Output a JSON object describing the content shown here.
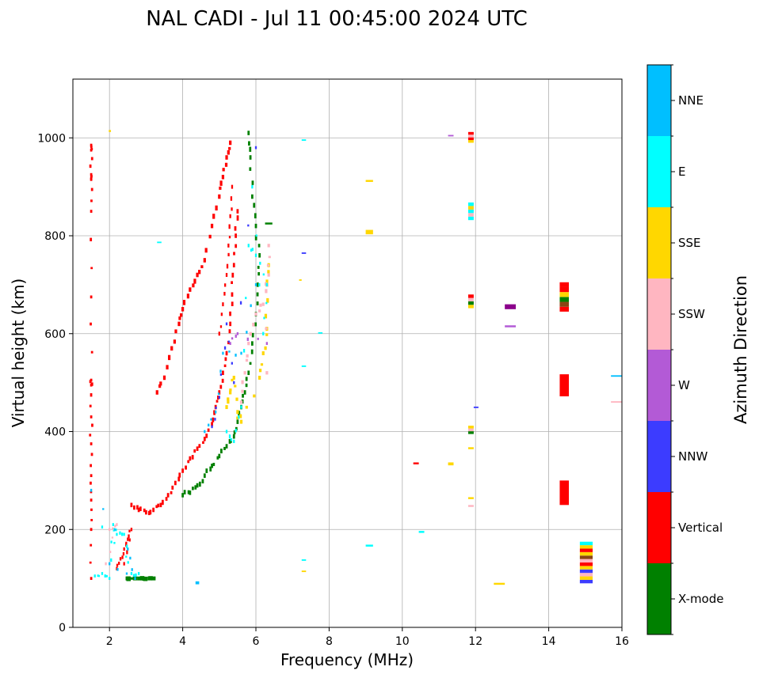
{
  "chart_data": {
    "type": "scatter",
    "title": "NAL CADI - Jul 11 00:45:00 2024 UTC",
    "xlabel": "Frequency (MHz)",
    "ylabel": "Virtual height (km)",
    "xlim": [
      1,
      16
    ],
    "ylim": [
      0,
      1120
    ],
    "xticks": [
      "2",
      "4",
      "6",
      "8",
      "10",
      "12",
      "14",
      "16"
    ],
    "yticks": [
      "0",
      "200",
      "400",
      "600",
      "800",
      "1000"
    ],
    "grid": true,
    "colorbar": {
      "title": "Azimuth Direction",
      "categories": [
        {
          "name": "X-mode",
          "color": "#008000"
        },
        {
          "name": "Vertical",
          "color": "#ff0000"
        },
        {
          "name": "NNW",
          "color": "#3c3cff"
        },
        {
          "name": "W",
          "color": "#b35ad6"
        },
        {
          "name": "SSW",
          "color": "#ffb6c1"
        },
        {
          "name": "SSE",
          "color": "#ffd700"
        },
        {
          "name": "E",
          "color": "#00ffff"
        },
        {
          "name": "NNE",
          "color": "#00bfff"
        }
      ]
    },
    "extra_colors": {
      "brown": "#8b4513",
      "purple": "#8b008b"
    },
    "traces": [
      {
        "series": "Vertical",
        "points": [
          [
            2.6,
            250
          ],
          [
            2.8,
            240
          ],
          [
            3.0,
            235
          ],
          [
            3.2,
            240
          ],
          [
            3.4,
            250
          ],
          [
            3.6,
            270
          ],
          [
            3.8,
            295
          ],
          [
            4.0,
            320
          ],
          [
            4.2,
            345
          ],
          [
            4.4,
            365
          ],
          [
            4.6,
            385
          ],
          [
            4.8,
            415
          ],
          [
            4.9,
            450
          ],
          [
            5.0,
            480
          ],
          [
            5.1,
            520
          ],
          [
            5.2,
            560
          ],
          [
            5.3,
            620
          ],
          [
            5.35,
            680
          ],
          [
            5.4,
            740
          ],
          [
            5.45,
            800
          ],
          [
            5.5,
            850
          ]
        ],
        "dx": 0.06,
        "dy": 9,
        "jitter": 10
      },
      {
        "series": "Vertical",
        "points": [
          [
            3.3,
            480
          ],
          [
            3.5,
            510
          ],
          [
            3.7,
            570
          ],
          [
            3.9,
            620
          ],
          [
            4.0,
            650
          ],
          [
            4.2,
            690
          ],
          [
            4.4,
            720
          ],
          [
            4.6,
            750
          ],
          [
            4.8,
            820
          ],
          [
            5.0,
            880
          ],
          [
            5.1,
            920
          ],
          [
            5.2,
            960
          ],
          [
            5.3,
            990
          ]
        ],
        "dx": 0.07,
        "dy": 9,
        "jitter": 8
      },
      {
        "series": "Vertical",
        "points": [
          [
            5.0,
            600
          ],
          [
            5.1,
            660
          ],
          [
            5.2,
            720
          ],
          [
            5.25,
            780
          ],
          [
            5.3,
            840
          ],
          [
            5.35,
            900
          ]
        ],
        "dx": 0.05,
        "dy": 8,
        "jitter": 12
      },
      {
        "series": "X-mode",
        "points": [
          [
            4.0,
            270
          ],
          [
            4.2,
            275
          ],
          [
            4.4,
            290
          ],
          [
            4.6,
            310
          ],
          [
            4.8,
            330
          ],
          [
            5.0,
            350
          ],
          [
            5.2,
            370
          ],
          [
            5.4,
            390
          ],
          [
            5.5,
            420
          ],
          [
            5.6,
            450
          ],
          [
            5.7,
            480
          ],
          [
            5.8,
            520
          ],
          [
            5.9,
            580
          ],
          [
            6.0,
            640
          ],
          [
            6.05,
            700
          ],
          [
            6.1,
            760
          ],
          [
            6.0,
            820
          ],
          [
            5.9,
            880
          ],
          [
            5.85,
            960
          ],
          [
            5.8,
            1010
          ]
        ],
        "dx": 0.06,
        "dy": 9,
        "jitter": 10
      },
      {
        "series": "X-mode",
        "points": [
          [
            2.5,
            100
          ],
          [
            2.7,
            100
          ],
          [
            2.9,
            100
          ],
          [
            3.1,
            100
          ],
          [
            3.2,
            100
          ]
        ],
        "dx": 0.12,
        "dy": 8,
        "jitter": 2
      },
      {
        "series": "SSE",
        "points": [
          [
            5.2,
            450
          ],
          [
            5.3,
            480
          ],
          [
            5.4,
            510
          ],
          [
            5.5,
            440
          ],
          [
            5.6,
            420
          ],
          [
            6.1,
            510
          ],
          [
            6.2,
            560
          ],
          [
            6.3,
            610
          ],
          [
            6.3,
            700
          ],
          [
            6.35,
            740
          ]
        ],
        "dx": 0.07,
        "dy": 8,
        "jitter": 15
      },
      {
        "series": "SSW",
        "points": [
          [
            5.6,
            460
          ],
          [
            5.7,
            520
          ],
          [
            5.8,
            580
          ],
          [
            6.0,
            640
          ],
          [
            6.2,
            660
          ],
          [
            6.35,
            720
          ],
          [
            6.35,
            780
          ],
          [
            6.3,
            520
          ]
        ],
        "dx": 0.07,
        "dy": 7,
        "jitter": 15
      },
      {
        "series": "E",
        "points": [
          [
            5.2,
            400
          ],
          [
            5.4,
            380
          ],
          [
            5.6,
            450
          ],
          [
            5.8,
            780
          ],
          [
            6.0,
            760
          ],
          [
            6.3,
            700
          ],
          [
            6.2,
            600
          ],
          [
            5.9,
            900
          ]
        ],
        "dx": 0.05,
        "dy": 7,
        "jitter": 12
      },
      {
        "series": "NNW",
        "points": [
          [
            4.8,
            410
          ],
          [
            5.0,
            470
          ],
          [
            5.2,
            620
          ],
          [
            5.4,
            500
          ],
          [
            6.0,
            980
          ]
        ],
        "dx": 0.05,
        "dy": 6,
        "jitter": 10
      },
      {
        "series": "NNE",
        "points": [
          [
            4.6,
            400
          ],
          [
            4.9,
            440
          ],
          [
            5.1,
            560
          ],
          [
            5.6,
            560
          ],
          [
            6.0,
            700
          ]
        ],
        "dx": 0.05,
        "dy": 6,
        "jitter": 10
      },
      {
        "series": "W",
        "points": [
          [
            5.3,
            580
          ],
          [
            5.5,
            600
          ],
          [
            6.3,
            580
          ]
        ],
        "dx": 0.05,
        "dy": 6,
        "jitter": 10
      },
      {
        "series": "Vertical",
        "points": [
          [
            1.5,
            100
          ],
          [
            1.5,
            200
          ],
          [
            1.5,
            260
          ],
          [
            1.5,
            310
          ],
          [
            1.5,
            375
          ],
          [
            1.5,
            430
          ],
          [
            1.5,
            495
          ],
          [
            1.5,
            505
          ],
          [
            1.5,
            675
          ],
          [
            1.5,
            850
          ],
          [
            1.5,
            915
          ],
          [
            1.5,
            925
          ],
          [
            1.5,
            975
          ],
          [
            1.5,
            985
          ]
        ],
        "dx": 0.06,
        "dy": 6,
        "jitter": 3
      },
      {
        "series": "Vertical",
        "points": [
          [
            2.2,
            120
          ],
          [
            2.3,
            140
          ],
          [
            2.4,
            160
          ],
          [
            2.5,
            180
          ],
          [
            2.6,
            200
          ],
          [
            2.4,
            130
          ]
        ],
        "dx": 0.05,
        "dy": 7,
        "jitter": 8
      },
      {
        "series": "E",
        "points": [
          [
            1.6,
            105
          ],
          [
            1.8,
            110
          ],
          [
            2.0,
            100
          ],
          [
            2.1,
            210
          ],
          [
            2.2,
            190
          ],
          [
            2.4,
            190
          ],
          [
            2.6,
            110
          ],
          [
            2.8,
            110
          ],
          [
            1.8,
            205
          ]
        ],
        "dx": 0.05,
        "dy": 6,
        "jitter": 8
      },
      {
        "series": "NNE",
        "points": [
          [
            1.5,
            280
          ],
          [
            2.5,
            160
          ],
          [
            2.7,
            100
          ],
          [
            2.0,
            130
          ]
        ],
        "dx": 0.05,
        "dy": 6,
        "jitter": 8
      },
      {
        "series": "SSW",
        "points": [
          [
            2.0,
            200
          ],
          [
            2.2,
            210
          ],
          [
            1.9,
            130
          ]
        ],
        "dx": 0.05,
        "dy": 6,
        "jitter": 6
      }
    ],
    "blocks": [
      {
        "series": "W",
        "x": [
          11.25,
          11.4
        ],
        "y": [
          1003,
          1006
        ]
      },
      {
        "series": "Vertical",
        "x": [
          11.8,
          11.95
        ],
        "y": [
          990,
          1012
        ],
        "stripes": [
          "SSE",
          "Vertical",
          "SSW",
          "Vertical"
        ]
      },
      {
        "series": "E",
        "x": [
          11.8,
          11.95
        ],
        "y": [
          832,
          868
        ],
        "stripes": [
          "E",
          "SSW",
          "E",
          "SSE",
          "E"
        ]
      },
      {
        "series": "SSE",
        "x": [
          11.8,
          11.95
        ],
        "y": [
          652,
          680
        ],
        "stripes": [
          "SSE",
          "X-mode",
          "SSW",
          "Vertical"
        ]
      },
      {
        "series": "X-mode",
        "x": [
          11.8,
          11.95
        ],
        "y": [
          395,
          412
        ],
        "stripes": [
          "X-mode",
          "SSW",
          "SSE"
        ]
      },
      {
        "series": "SSE",
        "x": [
          11.8,
          11.95
        ],
        "y": [
          364,
          368
        ]
      },
      {
        "series": "SSE",
        "x": [
          11.8,
          11.95
        ],
        "y": [
          262,
          266
        ]
      },
      {
        "series": "SSW",
        "x": [
          11.8,
          11.95
        ],
        "y": [
          246,
          250
        ]
      },
      {
        "series": "purple",
        "x": [
          12.8,
          13.1
        ],
        "y": [
          650,
          660
        ]
      },
      {
        "series": "W",
        "x": [
          12.8,
          13.1
        ],
        "y": [
          613,
          617
        ]
      },
      {
        "series": "SSE",
        "x": [
          12.5,
          12.8
        ],
        "y": [
          87,
          91
        ]
      },
      {
        "series": "Vertical",
        "x": [
          14.3,
          14.55
        ],
        "y": [
          645,
          705
        ],
        "stripes": [
          "Vertical",
          "brown",
          "X-mode",
          "SSE",
          "Vertical",
          "Vertical"
        ]
      },
      {
        "series": "Vertical",
        "x": [
          14.3,
          14.55
        ],
        "y": [
          472,
          517
        ]
      },
      {
        "series": "Vertical",
        "x": [
          14.3,
          14.55
        ],
        "y": [
          250,
          300
        ]
      },
      {
        "series": "E",
        "x": [
          14.85,
          15.2
        ],
        "y": [
          90,
          175
        ],
        "stripes": [
          "NNW",
          "SSE",
          "SSW",
          "NNW",
          "SSE",
          "Vertical",
          "SSW",
          "brown",
          "SSE",
          "Vertical",
          "SSE",
          "E"
        ]
      },
      {
        "series": "NNE",
        "x": [
          15.7,
          16.0
        ],
        "y": [
          512,
          515
        ]
      },
      {
        "series": "SSW",
        "x": [
          15.7,
          16.0
        ],
        "y": [
          459,
          462
        ]
      },
      {
        "series": "SSE",
        "x": [
          9.0,
          9.2
        ],
        "y": [
          803,
          812
        ]
      },
      {
        "series": "SSE",
        "x": [
          9.0,
          9.2
        ],
        "y": [
          910,
          914
        ]
      },
      {
        "series": "E",
        "x": [
          9.0,
          9.2
        ],
        "y": [
          165,
          169
        ]
      },
      {
        "series": "Vertical",
        "x": [
          10.3,
          10.45
        ],
        "y": [
          333,
          337
        ]
      },
      {
        "series": "SSE",
        "x": [
          11.25,
          11.4
        ],
        "y": [
          331,
          337
        ]
      },
      {
        "series": "E",
        "x": [
          10.45,
          10.6
        ],
        "y": [
          193,
          197
        ]
      },
      {
        "series": "NNW",
        "x": [
          11.95,
          12.08
        ],
        "y": [
          448,
          451
        ]
      },
      {
        "series": "E",
        "x": [
          7.7,
          7.82
        ],
        "y": [
          600,
          603
        ]
      },
      {
        "series": "NNW",
        "x": [
          7.25,
          7.37
        ],
        "y": [
          763,
          766
        ]
      },
      {
        "series": "E",
        "x": [
          7.25,
          7.37
        ],
        "y": [
          994,
          997
        ]
      },
      {
        "series": "SSE",
        "x": [
          7.18,
          7.25
        ],
        "y": [
          708,
          711
        ]
      },
      {
        "series": "E",
        "x": [
          7.25,
          7.37
        ],
        "y": [
          532,
          535
        ]
      },
      {
        "series": "E",
        "x": [
          7.25,
          7.37
        ],
        "y": [
          136,
          139
        ]
      },
      {
        "series": "SSE",
        "x": [
          7.25,
          7.37
        ],
        "y": [
          113,
          116
        ]
      },
      {
        "series": "E",
        "x": [
          3.3,
          3.42
        ],
        "y": [
          785,
          788
        ]
      },
      {
        "series": "NNE",
        "x": [
          4.35,
          4.45
        ],
        "y": [
          88,
          94
        ]
      },
      {
        "series": "SSE",
        "x": [
          1.98,
          2.04
        ],
        "y": [
          1012,
          1016
        ]
      },
      {
        "series": "X-mode",
        "x": [
          6.25,
          6.45
        ],
        "y": [
          823,
          827
        ]
      }
    ]
  }
}
